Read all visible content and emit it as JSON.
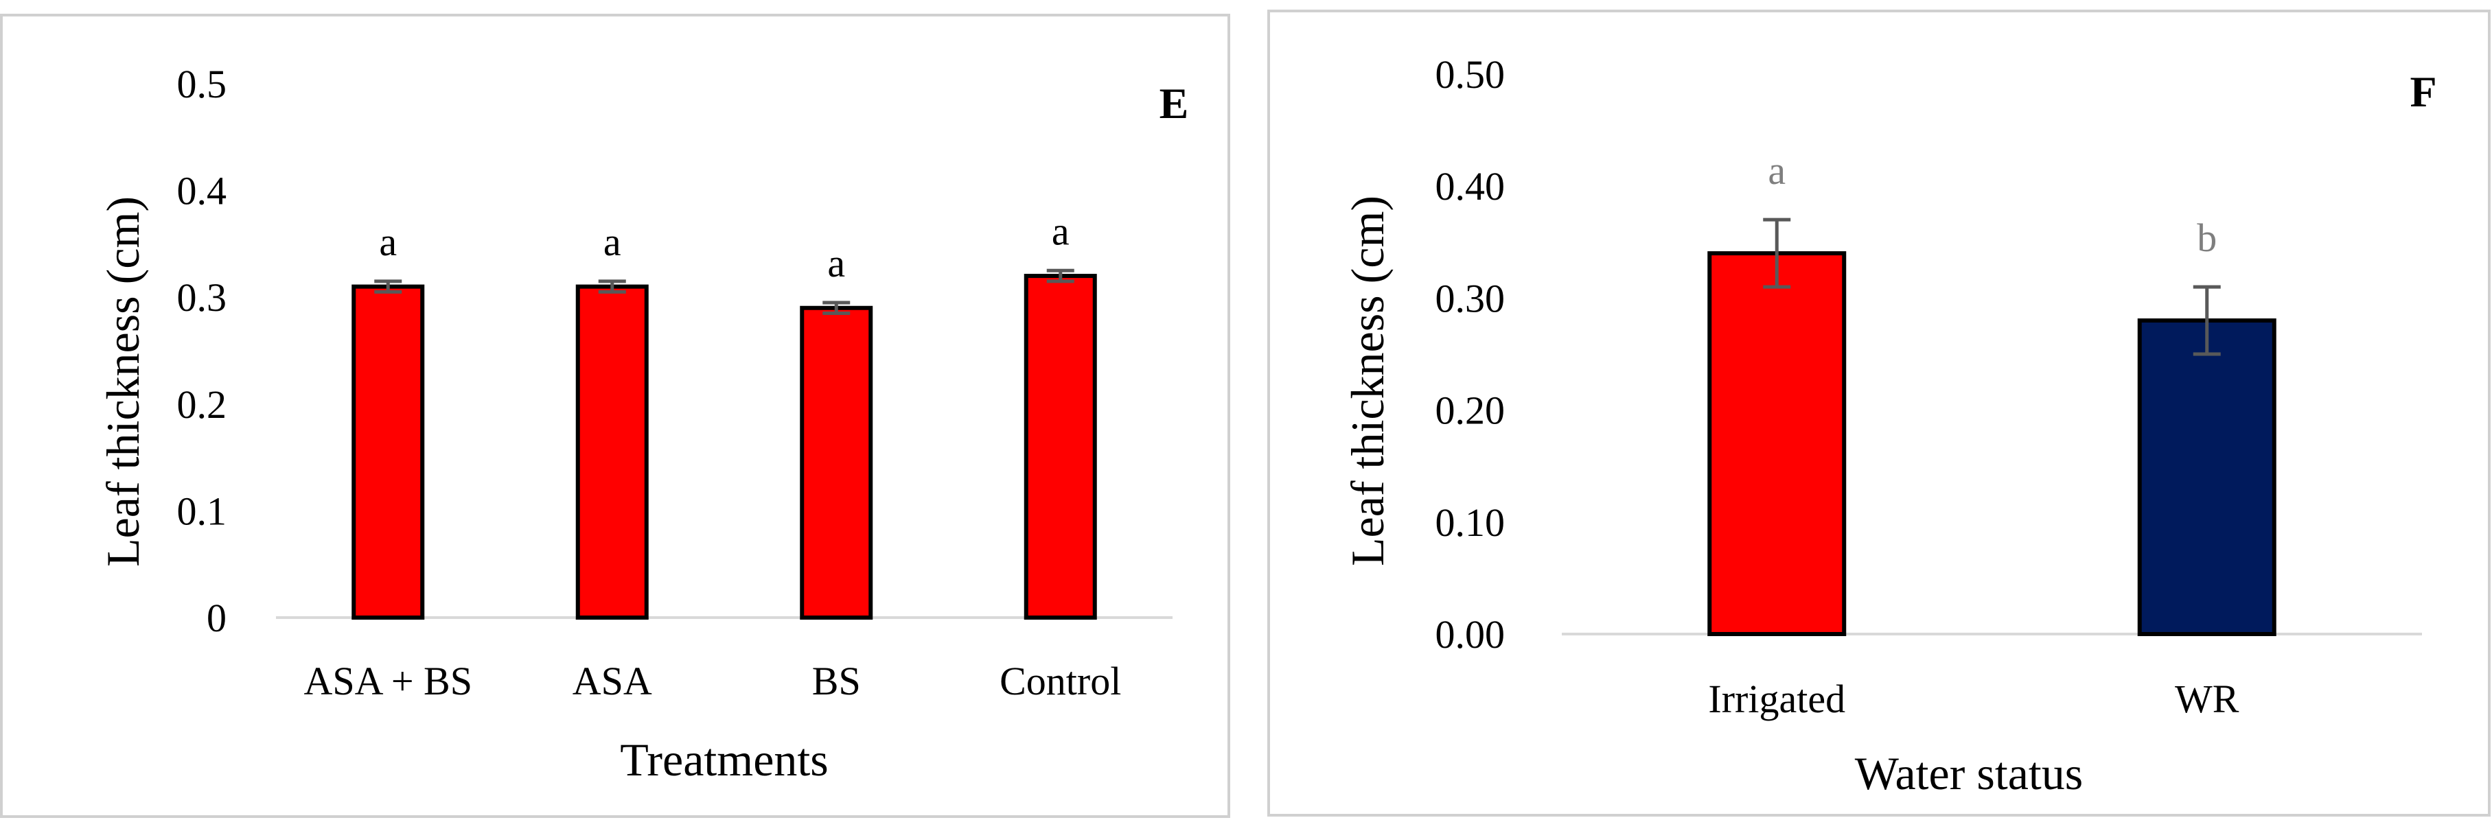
{
  "chart_data": [
    {
      "type": "bar",
      "panel_label": "E",
      "categories": [
        "ASA + BS",
        "ASA",
        "BS",
        "Control"
      ],
      "values": [
        0.31,
        0.31,
        0.29,
        0.32
      ],
      "errors": [
        0.005,
        0.005,
        0.005,
        0.005
      ],
      "letters": [
        "a",
        "a",
        "a",
        "a"
      ],
      "letter_color": "#000000",
      "bar_colors": [
        "#ff0000",
        "#ff0000",
        "#ff0000",
        "#ff0000"
      ],
      "xlabel": "Treatments",
      "ylabel": "Leaf thickness (cm)",
      "ylim": [
        0,
        0.5
      ],
      "yticks": [
        "0",
        "0.1",
        "0.2",
        "0.3",
        "0.4",
        "0.5"
      ],
      "grid": false
    },
    {
      "type": "bar",
      "panel_label": "F",
      "categories": [
        "Irrigated",
        "WR"
      ],
      "values": [
        0.34,
        0.28
      ],
      "errors": [
        0.03,
        0.03
      ],
      "letters": [
        "a",
        "b"
      ],
      "letter_color": "#7f7f7f",
      "bar_colors": [
        "#ff0000",
        "#001a5c"
      ],
      "xlabel": "Water status",
      "ylabel": "Leaf thickness (cm)",
      "ylim": [
        0,
        0.5
      ],
      "yticks": [
        "0.00",
        "0.10",
        "0.20",
        "0.30",
        "0.40",
        "0.50"
      ],
      "grid": false
    }
  ]
}
